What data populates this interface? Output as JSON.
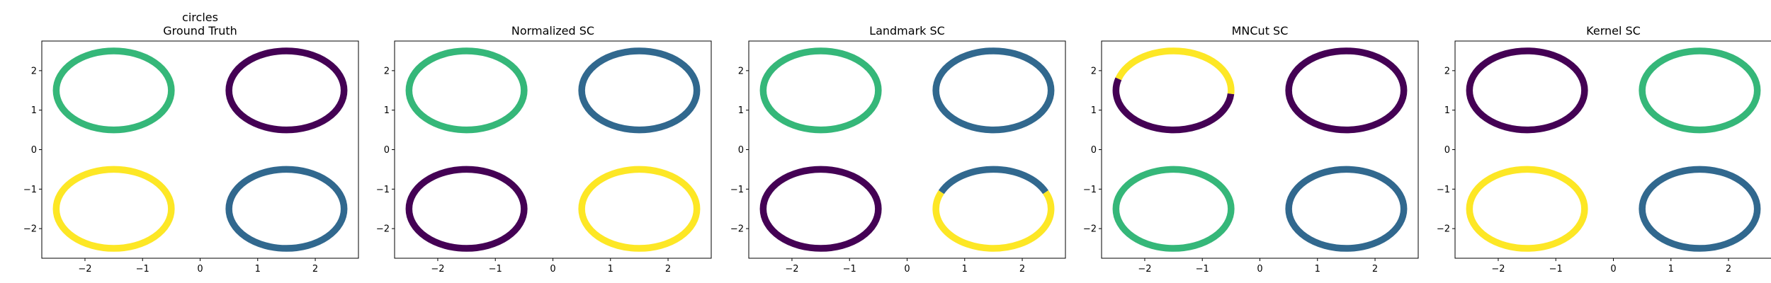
{
  "colors": {
    "purple": "#440154",
    "blue": "#31688e",
    "green": "#35b779",
    "yellow": "#fde725",
    "axis": "#000000",
    "background": "#ffffff"
  },
  "chart_data": [
    {
      "type": "scatter",
      "title": "circles\nGround Truth",
      "xlim": [
        -2.75,
        2.75
      ],
      "ylim": [
        -2.75,
        2.75
      ],
      "xticks": [
        -2,
        -1,
        0,
        1,
        2
      ],
      "yticks": [
        -2,
        -1,
        0,
        1,
        2
      ],
      "grid": false,
      "series": [
        {
          "center": [
            -1.5,
            1.5
          ],
          "radius": 1.0,
          "segments": [
            {
              "from": 0,
              "to": 360,
              "color": "green"
            }
          ]
        },
        {
          "center": [
            1.5,
            1.5
          ],
          "radius": 1.0,
          "segments": [
            {
              "from": 0,
              "to": 360,
              "color": "purple"
            }
          ]
        },
        {
          "center": [
            -1.5,
            -1.5
          ],
          "radius": 1.0,
          "segments": [
            {
              "from": 0,
              "to": 360,
              "color": "yellow"
            }
          ]
        },
        {
          "center": [
            1.5,
            -1.5
          ],
          "radius": 1.0,
          "segments": [
            {
              "from": 0,
              "to": 360,
              "color": "blue"
            }
          ]
        }
      ]
    },
    {
      "type": "scatter",
      "title": "Normalized SC",
      "xlim": [
        -2.75,
        2.75
      ],
      "ylim": [
        -2.75,
        2.75
      ],
      "xticks": [
        -2,
        -1,
        0,
        1,
        2
      ],
      "yticks": [
        -2,
        -1,
        0,
        1,
        2
      ],
      "grid": false,
      "series": [
        {
          "center": [
            -1.5,
            1.5
          ],
          "radius": 1.0,
          "segments": [
            {
              "from": 0,
              "to": 360,
              "color": "green"
            }
          ]
        },
        {
          "center": [
            1.5,
            1.5
          ],
          "radius": 1.0,
          "segments": [
            {
              "from": 0,
              "to": 360,
              "color": "blue"
            }
          ]
        },
        {
          "center": [
            -1.5,
            -1.5
          ],
          "radius": 1.0,
          "segments": [
            {
              "from": 0,
              "to": 360,
              "color": "purple"
            }
          ]
        },
        {
          "center": [
            1.5,
            -1.5
          ],
          "radius": 1.0,
          "segments": [
            {
              "from": 0,
              "to": 360,
              "color": "yellow"
            }
          ]
        }
      ]
    },
    {
      "type": "scatter",
      "title": "Landmark SC",
      "xlim": [
        -2.75,
        2.75
      ],
      "ylim": [
        -2.75,
        2.75
      ],
      "xticks": [
        -2,
        -1,
        0,
        1,
        2
      ],
      "yticks": [
        -2,
        -1,
        0,
        1,
        2
      ],
      "grid": false,
      "series": [
        {
          "center": [
            -1.5,
            1.5
          ],
          "radius": 1.0,
          "segments": [
            {
              "from": 0,
              "to": 360,
              "color": "green"
            }
          ]
        },
        {
          "center": [
            1.5,
            1.5
          ],
          "radius": 1.0,
          "segments": [
            {
              "from": 0,
              "to": 360,
              "color": "blue"
            }
          ]
        },
        {
          "center": [
            -1.5,
            -1.5
          ],
          "radius": 1.0,
          "segments": [
            {
              "from": 0,
              "to": 360,
              "color": "purple"
            }
          ]
        },
        {
          "center": [
            1.5,
            -1.5
          ],
          "radius": 1.0,
          "segments": [
            {
              "from": 25,
              "to": 155,
              "color": "blue"
            },
            {
              "from": 155,
              "to": 385,
              "color": "yellow"
            }
          ]
        }
      ]
    },
    {
      "type": "scatter",
      "title": "MNCut SC",
      "xlim": [
        -2.75,
        2.75
      ],
      "ylim": [
        -2.75,
        2.75
      ],
      "xticks": [
        -2,
        -1,
        0,
        1,
        2
      ],
      "yticks": [
        -2,
        -1,
        0,
        1,
        2
      ],
      "grid": false,
      "series": [
        {
          "center": [
            -1.5,
            1.5
          ],
          "radius": 1.0,
          "segments": [
            {
              "from": -5,
              "to": 163,
              "color": "yellow"
            },
            {
              "from": 163,
              "to": 355,
              "color": "purple"
            }
          ]
        },
        {
          "center": [
            1.5,
            1.5
          ],
          "radius": 1.0,
          "segments": [
            {
              "from": 0,
              "to": 360,
              "color": "purple"
            }
          ]
        },
        {
          "center": [
            -1.5,
            -1.5
          ],
          "radius": 1.0,
          "segments": [
            {
              "from": 0,
              "to": 360,
              "color": "green"
            }
          ]
        },
        {
          "center": [
            1.5,
            -1.5
          ],
          "radius": 1.0,
          "segments": [
            {
              "from": 0,
              "to": 360,
              "color": "blue"
            }
          ]
        }
      ]
    },
    {
      "type": "scatter",
      "title": "Kernel SC",
      "xlim": [
        -2.75,
        2.75
      ],
      "ylim": [
        -2.75,
        2.75
      ],
      "xticks": [
        -2,
        -1,
        0,
        1,
        2
      ],
      "yticks": [
        -2,
        -1,
        0,
        1,
        2
      ],
      "grid": false,
      "series": [
        {
          "center": [
            -1.5,
            1.5
          ],
          "radius": 1.0,
          "segments": [
            {
              "from": 0,
              "to": 360,
              "color": "purple"
            }
          ]
        },
        {
          "center": [
            1.5,
            1.5
          ],
          "radius": 1.0,
          "segments": [
            {
              "from": 0,
              "to": 360,
              "color": "green"
            }
          ]
        },
        {
          "center": [
            -1.5,
            -1.5
          ],
          "radius": 1.0,
          "segments": [
            {
              "from": 0,
              "to": 360,
              "color": "yellow"
            }
          ]
        },
        {
          "center": [
            1.5,
            -1.5
          ],
          "radius": 1.0,
          "segments": [
            {
              "from": 0,
              "to": 360,
              "color": "blue"
            }
          ]
        }
      ]
    }
  ]
}
